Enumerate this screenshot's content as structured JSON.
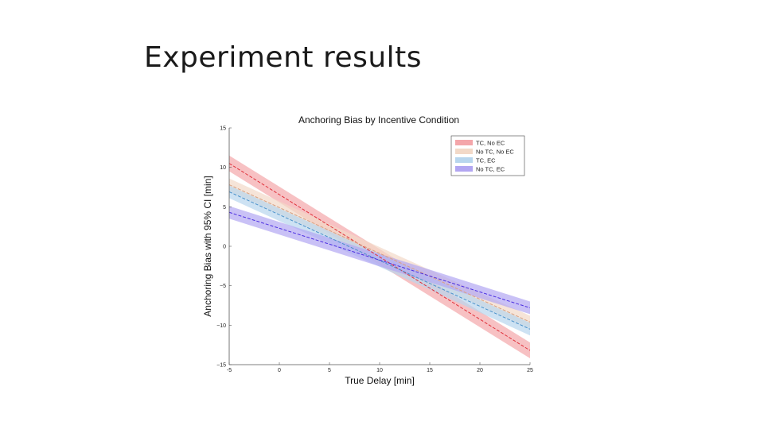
{
  "slide": {
    "title": "Experiment results"
  },
  "chart_data": {
    "type": "line",
    "title": "Anchoring Bias by Incentive Condition",
    "xlabel": "True Delay [min]",
    "ylabel": "Anchoring Bias with 95% CI [min]",
    "xlim": [
      -5,
      25
    ],
    "ylim": [
      -15,
      15
    ],
    "xticks": [
      -5,
      0,
      5,
      10,
      15,
      20,
      25
    ],
    "xtick_labels": [
      "-5",
      "0",
      "5",
      "10",
      "15",
      "20",
      "25"
    ],
    "yticks": [
      -15,
      -10,
      -5,
      0,
      5,
      10,
      15
    ],
    "ytick_labels": [
      "−15",
      "−10",
      "−5",
      "0",
      "5",
      "10",
      "15"
    ],
    "grid": false,
    "legend_position": "top-right",
    "series": [
      {
        "name": "TC, No EC",
        "color": "#e0303a",
        "band_color": "#f4a6aa",
        "x": [
          -5,
          25
        ],
        "y": [
          10.5,
          -13.2
        ],
        "ci": [
          1.0,
          1.0
        ]
      },
      {
        "name": "No TC, No EC",
        "color": "#d8a080",
        "band_color": "#f2d9c8",
        "x": [
          -5,
          25
        ],
        "y": [
          7.8,
          -9.6
        ],
        "ci": [
          0.8,
          0.8
        ]
      },
      {
        "name": "TC, EC",
        "color": "#4a90c8",
        "band_color": "#b8d6ee",
        "x": [
          -5,
          25
        ],
        "y": [
          6.9,
          -10.5
        ],
        "ci": [
          0.8,
          0.8
        ]
      },
      {
        "name": "No TC, EC",
        "color": "#4b2ee0",
        "band_color": "#b2a6f2",
        "x": [
          -5,
          25
        ],
        "y": [
          4.3,
          -7.8
        ],
        "ci": [
          0.8,
          0.8
        ]
      }
    ]
  }
}
